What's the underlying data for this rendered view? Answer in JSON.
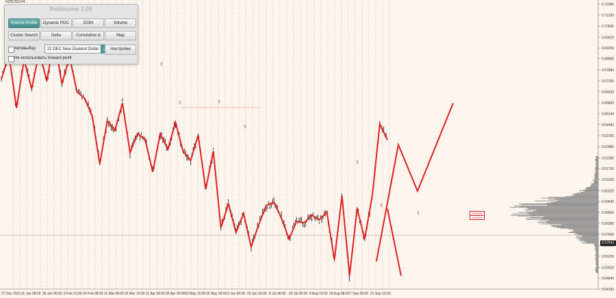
{
  "symbol": "NZDUSD,H4",
  "panel": {
    "title": "ProVolume 2.05",
    "buttons": [
      {
        "label": "Volume Profile",
        "active": true
      },
      {
        "label": "Dynamic POC",
        "active": false
      },
      {
        "label": "DOM",
        "active": false
      },
      {
        "label": "Volume",
        "active": false
      },
      {
        "label": "Cluster Search",
        "active": false
      },
      {
        "label": "Delta",
        "active": false
      },
      {
        "label": "Cumulative Δ",
        "active": false
      },
      {
        "label": "Map",
        "active": false
      }
    ],
    "auto_label": "Автовыбор",
    "instrument": "22 DEC New Zealand Dollar",
    "settings_label": "Настройки",
    "forward_point_label": "Не использовать forward-point"
  },
  "current_price": "0.57541",
  "level_labels": [
    "0.59200",
    "0.59100"
  ],
  "colors": {
    "background": "#fdf5ee",
    "zigzag": "#e02020",
    "candles": "#111111",
    "profile": "#8a8a8a"
  },
  "chart_data": {
    "type": "candlestick",
    "y_ticks": [
      "0.72000",
      "0.71320",
      "0.70620",
      "0.69920",
      "0.69250",
      "0.68580",
      "0.67880",
      "0.67200",
      "0.66520",
      "0.65820",
      "0.65140",
      "0.64460",
      "0.63760",
      "0.63080",
      "0.62380",
      "0.61700",
      "0.61020",
      "0.60320",
      "0.59640",
      "0.58960",
      "0.58280",
      "0.57600",
      "0.56900",
      "0.56220",
      "0.55520",
      "0.54840",
      "0.54160"
    ],
    "ylim": [
      0.5416,
      0.72
    ],
    "x_ticks": [
      "27 Dec 2021",
      "11 Jan 08:00",
      "26 Jan 00:00",
      "9 Feb 16:00",
      "24 Feb 08:00",
      "11 Mar 00:00",
      "25 Mar 16:00",
      "11 Apr 08:00",
      "26 Apr 00:00",
      "10 May 16:00",
      "25 May 08:00",
      "9 Jun 00:00",
      "23 Jun 16:00",
      "8 Jul 08:00",
      "25 Jul 00:00",
      "8 Aug 16:00",
      "23 Aug 08:00",
      "7 Sep 00:00",
      "21 Sep 16:00"
    ],
    "zigzag": [
      0.673,
      0.688,
      0.655,
      0.685,
      0.667,
      0.69,
      0.672,
      0.698,
      0.67,
      0.687,
      0.665,
      0.661,
      0.65,
      0.62,
      0.647,
      0.641,
      0.658,
      0.627,
      0.639,
      0.635,
      0.615,
      0.639,
      0.629,
      0.646,
      0.628,
      0.622,
      0.638,
      0.604,
      0.628,
      0.58,
      0.595,
      0.577,
      0.589,
      0.568,
      0.582,
      0.594,
      0.596,
      0.586,
      0.573,
      0.584,
      0.583,
      0.588,
      0.585,
      0.59,
      0.56,
      0.6,
      0.55,
      0.592,
      0.573,
      0.6,
      0.645,
      0.635
    ],
    "projection": [
      0.559,
      0.632,
      0.603,
      0.658
    ],
    "projection_down": 0.55,
    "current_price": 0.57541
  }
}
